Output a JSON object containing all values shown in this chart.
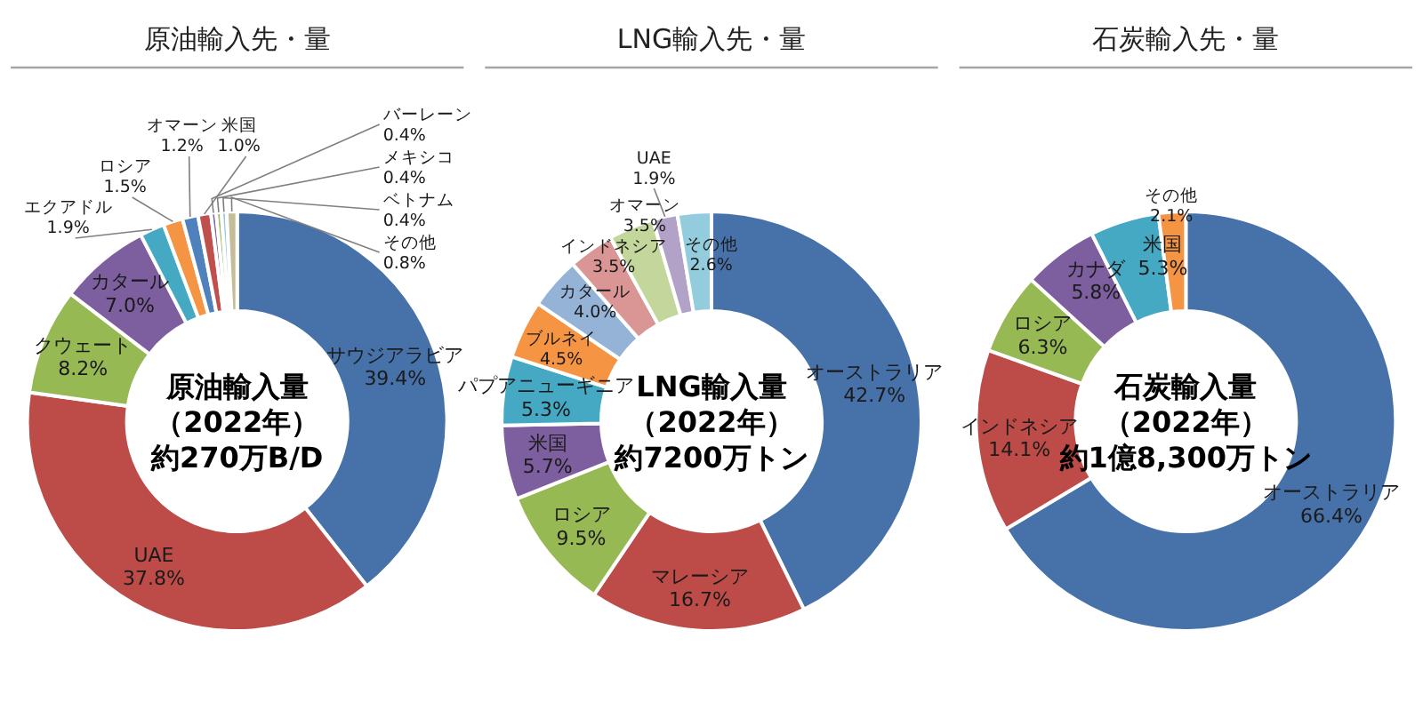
{
  "chart_data": [
    {
      "type": "donut",
      "title": "原油輸入先・量",
      "categories": [
        "サウジアラビア",
        "UAE",
        "クウェート",
        "カタール",
        "エクアドル",
        "ロシア",
        "オマーン",
        "米国",
        "バーレーン",
        "メキシコ",
        "ベトナム",
        "その他"
      ],
      "values": [
        39.4,
        37.8,
        8.2,
        7.0,
        1.9,
        1.5,
        1.2,
        1.0,
        0.4,
        0.4,
        0.4,
        0.8
      ],
      "value_labels": [
        "39.4%",
        "37.8%",
        "8.2%",
        "7.0%",
        "1.9%",
        "1.5%",
        "1.2%",
        "1.0%",
        "0.4%",
        "0.4%",
        "0.4%",
        "0.8%"
      ],
      "colors": [
        "#4672a9",
        "#bd4b48",
        "#97b954",
        "#7d5fa0",
        "#46a9c4",
        "#f59443",
        "#4f81bd",
        "#c0504d",
        "#8064a2",
        "#9bbb59",
        "#93cddd",
        "#c4bd97"
      ],
      "annotations": [
        "原油輸入量",
        "（2022年）",
        "約270万B/D"
      ]
    },
    {
      "type": "donut",
      "title": "LNG輸入先・量",
      "categories": [
        "オーストラリア",
        "マレーシア",
        "ロシア",
        "米国",
        "パプアニューギニア",
        "ブルネイ",
        "カタール",
        "インドネシア",
        "オマーン",
        "UAE",
        "その他"
      ],
      "values": [
        42.7,
        16.7,
        9.5,
        5.7,
        5.3,
        4.5,
        4.0,
        3.5,
        3.5,
        1.9,
        2.6
      ],
      "value_labels": [
        "42.7%",
        "16.7%",
        "9.5%",
        "5.7%",
        "5.3%",
        "4.5%",
        "4.0%",
        "3.5%",
        "3.5%",
        "1.9%",
        "2.6%"
      ],
      "colors": [
        "#4672a9",
        "#bd4b48",
        "#97b954",
        "#7d5fa0",
        "#46a9c4",
        "#f59443",
        "#95b3d7",
        "#d99694",
        "#c3d69b",
        "#b3a2c7",
        "#93cddd"
      ],
      "annotations": [
        "LNG輸入量",
        "（2022年）",
        "約7200万トン"
      ]
    },
    {
      "type": "donut",
      "title": "石炭輸入先・量",
      "categories": [
        "オーストラリア",
        "インドネシア",
        "ロシア",
        "カナダ",
        "米国",
        "その他"
      ],
      "values": [
        66.4,
        14.1,
        6.3,
        5.8,
        5.3,
        2.1
      ],
      "value_labels": [
        "66.4%",
        "14.1%",
        "6.3%",
        "5.8%",
        "5.3%",
        "2.1%"
      ],
      "colors": [
        "#4672a9",
        "#bd4b48",
        "#97b954",
        "#7d5fa0",
        "#46a9c4",
        "#f59443"
      ],
      "annotations": [
        "石炭輸入量",
        "（2022年）",
        "約1億8,300万トン"
      ]
    }
  ]
}
